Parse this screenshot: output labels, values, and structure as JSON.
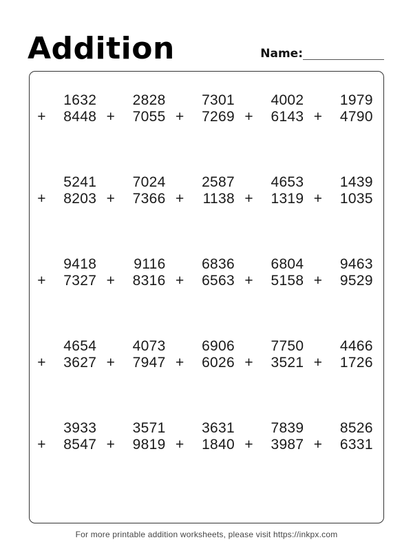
{
  "title": "Addition",
  "name_label": "Name:",
  "operator": "+",
  "footer": "For more printable addition worksheets, please visit https://inkpx.com",
  "colors": {
    "ink": "#1a1a1a",
    "border": "#333333",
    "answer_line": "#222222"
  },
  "problems": [
    {
      "a": "1632",
      "b": "8448"
    },
    {
      "a": "2828",
      "b": "7055"
    },
    {
      "a": "7301",
      "b": "7269"
    },
    {
      "a": "4002",
      "b": "6143"
    },
    {
      "a": "1979",
      "b": "4790"
    },
    {
      "a": "5241",
      "b": "8203"
    },
    {
      "a": "7024",
      "b": "7366"
    },
    {
      "a": "2587",
      "b": "1138"
    },
    {
      "a": "4653",
      "b": "1319"
    },
    {
      "a": "1439",
      "b": "1035"
    },
    {
      "a": "9418",
      "b": "7327"
    },
    {
      "a": "9116",
      "b": "8316"
    },
    {
      "a": "6836",
      "b": "6563"
    },
    {
      "a": "6804",
      "b": "5158"
    },
    {
      "a": "9463",
      "b": "9529"
    },
    {
      "a": "4654",
      "b": "3627"
    },
    {
      "a": "4073",
      "b": "7947"
    },
    {
      "a": "6906",
      "b": "6026"
    },
    {
      "a": "7750",
      "b": "3521"
    },
    {
      "a": "4466",
      "b": "1726"
    },
    {
      "a": "3933",
      "b": "8547"
    },
    {
      "a": "3571",
      "b": "9819"
    },
    {
      "a": "3631",
      "b": "1840"
    },
    {
      "a": "7839",
      "b": "3987"
    },
    {
      "a": "8526",
      "b": "6331"
    }
  ]
}
